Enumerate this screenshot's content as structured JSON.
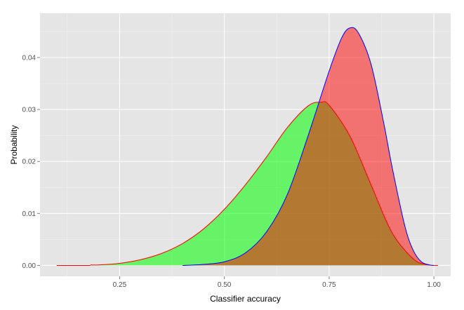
{
  "chart_data": {
    "type": "area",
    "title": "",
    "xlabel": "Classifier accuracy",
    "ylabel": "Probability",
    "xlim": [
      0.06,
      1.04
    ],
    "ylim": [
      -0.0021,
      0.0485
    ],
    "x_ticks": [
      0.25,
      0.5,
      0.75,
      1.0
    ],
    "x_tick_labels": [
      "0.25",
      "0.50",
      "0.75",
      "1.00"
    ],
    "y_ticks": [
      0.0,
      0.01,
      0.02,
      0.03,
      0.04
    ],
    "y_tick_labels": [
      "0.00",
      "0.01",
      "0.02",
      "0.03",
      "0.04"
    ],
    "grid": true,
    "legend": "none",
    "background": "#E5E5E5",
    "series": [
      {
        "fill": "#00FF00",
        "stroke": "#FF0000",
        "opacity": 0.55,
        "x": [
          0.18,
          0.2,
          0.25,
          0.3,
          0.35,
          0.4,
          0.45,
          0.5,
          0.55,
          0.6,
          0.65,
          0.7,
          0.73,
          0.75,
          0.8,
          0.85,
          0.9,
          0.95,
          0.98,
          1.0
        ],
        "values": [
          0.0001,
          0.0001,
          0.0004,
          0.0011,
          0.0023,
          0.0042,
          0.007,
          0.0108,
          0.0155,
          0.0208,
          0.0265,
          0.0307,
          0.0314,
          0.0308,
          0.0248,
          0.0155,
          0.0063,
          0.0013,
          0.0002,
          0.0
        ]
      },
      {
        "fill": "#FF0000",
        "stroke": "#0000FF",
        "opacity": 0.5,
        "x": [
          0.4,
          0.45,
          0.5,
          0.55,
          0.6,
          0.65,
          0.7,
          0.75,
          0.78,
          0.8,
          0.82,
          0.85,
          0.88,
          0.9,
          0.93,
          0.95,
          0.97,
          0.99,
          1.0
        ],
        "values": [
          0.0,
          0.0002,
          0.0007,
          0.0024,
          0.0064,
          0.0136,
          0.025,
          0.0374,
          0.0438,
          0.0457,
          0.0447,
          0.0387,
          0.0275,
          0.019,
          0.0078,
          0.003,
          0.0007,
          0.0001,
          0.0
        ]
      },
      {
        "stroke": "#FF0000",
        "x": [
          0.1,
          0.18
        ],
        "values": [
          0.0,
          0.0
        ]
      },
      {
        "stroke": "#FF0000",
        "x": [
          1.0,
          1.01
        ],
        "values": [
          0.0,
          0.0
        ]
      }
    ]
  }
}
